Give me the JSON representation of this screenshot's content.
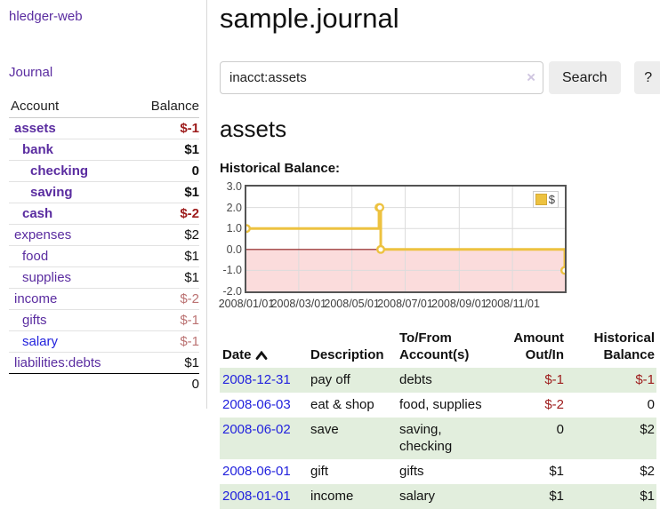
{
  "app": {
    "brand": "hledger-web"
  },
  "sidebar": {
    "journal_label": "Journal",
    "accounts_table": {
      "headers": {
        "account": "Account",
        "balance": "Balance"
      },
      "rows": [
        {
          "account": "assets",
          "balance": "$-1",
          "indent": 1,
          "bold": true,
          "balance_tone": "neg-strong",
          "link_tone": "purple"
        },
        {
          "account": "bank",
          "balance": "$1",
          "indent": 2,
          "bold": true,
          "balance_tone": "normal",
          "link_tone": "purple"
        },
        {
          "account": "checking",
          "balance": "0",
          "indent": 3,
          "bold": true,
          "balance_tone": "normal",
          "link_tone": "purple"
        },
        {
          "account": "saving",
          "balance": "$1",
          "indent": 3,
          "bold": true,
          "balance_tone": "normal",
          "link_tone": "purple"
        },
        {
          "account": "cash",
          "balance": "$-2",
          "indent": 2,
          "bold": true,
          "balance_tone": "neg-strong",
          "link_tone": "purple"
        },
        {
          "account": "expenses",
          "balance": "$2",
          "indent": 1,
          "bold": false,
          "balance_tone": "normal",
          "link_tone": "purple"
        },
        {
          "account": "food",
          "balance": "$1",
          "indent": 2,
          "bold": false,
          "balance_tone": "normal",
          "link_tone": "purple"
        },
        {
          "account": "supplies",
          "balance": "$1",
          "indent": 2,
          "bold": false,
          "balance_tone": "normal",
          "link_tone": "purple"
        },
        {
          "account": "income",
          "balance": "$-2",
          "indent": 1,
          "bold": false,
          "balance_tone": "neg-soft",
          "link_tone": "purple"
        },
        {
          "account": "gifts",
          "balance": "$-1",
          "indent": 2,
          "bold": false,
          "balance_tone": "neg-soft",
          "link_tone": "purple"
        },
        {
          "account": "salary",
          "balance": "$-1",
          "indent": 2,
          "bold": false,
          "balance_tone": "neg-soft",
          "link_tone": "blue"
        },
        {
          "account": "liabilities:debts",
          "balance": "$1",
          "indent": 1,
          "bold": false,
          "balance_tone": "normal",
          "link_tone": "purple"
        }
      ],
      "total": "0"
    }
  },
  "main": {
    "title": "sample.journal",
    "search": {
      "value": "inacct:assets",
      "clear_icon": "×",
      "search_button": "Search",
      "help_button": "?"
    },
    "account_heading": "assets",
    "section_label": "Historical Balance:"
  },
  "chart_data": {
    "type": "line",
    "step": true,
    "title": "Historical Balance",
    "series": [
      {
        "name": "$",
        "color": "#edc240",
        "points": [
          [
            "2008-01-01",
            1
          ],
          [
            "2008-06-01",
            2
          ],
          [
            "2008-06-02",
            2
          ],
          [
            "2008-06-03",
            0
          ],
          [
            "2008-12-31",
            -1
          ]
        ]
      }
    ],
    "x_range": [
      "2008-01-01",
      "2008-12-31"
    ],
    "x_tick_labels": [
      "2008/01/01",
      "2008/03/01",
      "2008/05/01",
      "2008/07/01",
      "2008/09/01",
      "2008/11/01"
    ],
    "y_ticks": [
      3.0,
      2.0,
      1.0,
      0.0,
      -1.0,
      -2.0
    ],
    "ylim": [
      -2,
      3
    ],
    "legend": {
      "label": "$",
      "position": "top-right"
    },
    "grid": true,
    "negative_region_color": "#fbdcdc",
    "zero_line_color": "#8b1a1a",
    "grid_color": "#dcdcdc"
  },
  "register": {
    "headers": {
      "date": "Date",
      "description": "Description",
      "accounts": "To/From Account(s)",
      "amount": "Amount Out/In",
      "balance": "Historical Balance"
    },
    "sort": {
      "column": "date",
      "direction": "ascending"
    },
    "rows": [
      {
        "date": "2008-12-31",
        "description": "pay off",
        "accounts": "debts",
        "amount": "$-1",
        "amount_tone": "neg",
        "balance": "$-1",
        "balance_tone": "neg"
      },
      {
        "date": "2008-06-03",
        "description": "eat & shop",
        "accounts": "food, supplies",
        "amount": "$-2",
        "amount_tone": "neg",
        "balance": "0",
        "balance_tone": "normal"
      },
      {
        "date": "2008-06-02",
        "description": "save",
        "accounts": "saving, checking",
        "amount": "0",
        "amount_tone": "normal",
        "balance": "$2",
        "balance_tone": "normal"
      },
      {
        "date": "2008-06-01",
        "description": "gift",
        "accounts": "gifts",
        "amount": "$1",
        "amount_tone": "normal",
        "balance": "$2",
        "balance_tone": "normal"
      },
      {
        "date": "2008-01-01",
        "description": "income",
        "accounts": "salary",
        "amount": "$1",
        "amount_tone": "normal",
        "balance": "$1",
        "balance_tone": "normal"
      }
    ]
  },
  "colors": {
    "link_purple": "#5a2ca0",
    "link_blue": "#2222dd",
    "negative_strong": "#9d1b1b",
    "negative_soft": "#bb7272",
    "row_green": "#e2eedd",
    "chart_line": "#edc240"
  }
}
